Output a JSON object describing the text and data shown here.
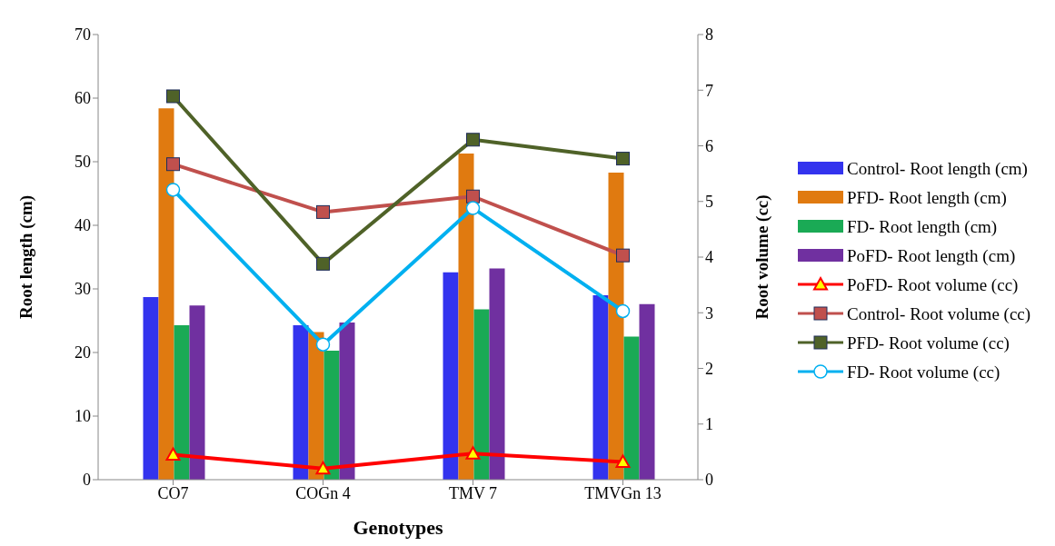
{
  "chart_data": {
    "type": "bar",
    "xlabel": "Genotypes",
    "ylabel": "Root length (cm)",
    "y2label": "Root volume (cc)",
    "categories": [
      "CO7",
      "COGn 4",
      "TMV 7",
      "TMVGn 13"
    ],
    "series": [
      {
        "name": "Control- Root length (cm)",
        "color": "#3333ee",
        "values": [
          28.7,
          24.3,
          32.6,
          29.0
        ]
      },
      {
        "name": "PFD- Root length (cm)",
        "color": "#e07a10",
        "values": [
          58.4,
          23.2,
          51.3,
          48.3
        ]
      },
      {
        "name": "FD- Root length (cm)",
        "color": "#1aaa55",
        "values": [
          24.3,
          20.3,
          26.8,
          22.5
        ]
      },
      {
        "name": "PoFD- Root length (cm)",
        "color": "#7030a0",
        "values": [
          27.4,
          24.7,
          33.2,
          27.6
        ]
      },
      {
        "name": "PoFD- Root volume (cc)",
        "type": "line",
        "axis": "y2",
        "marker": "triangle",
        "color": "#ff0000",
        "values": [
          0.45,
          0.2,
          0.47,
          0.32
        ]
      },
      {
        "name": "Control- Root volume (cc)",
        "type": "line",
        "axis": "y2",
        "marker": "square",
        "color": "#c0504d",
        "values": [
          5.67,
          4.81,
          5.09,
          4.03
        ]
      },
      {
        "name": "PFD- Root volume (cc)",
        "type": "line",
        "axis": "y2",
        "marker": "square",
        "color": "#4f6228",
        "values": [
          6.89,
          3.88,
          6.11,
          5.77
        ]
      },
      {
        "name": "FD- Root volume (cc)",
        "type": "line",
        "axis": "y2",
        "marker": "circle",
        "color": "#00b0f0",
        "values": [
          5.21,
          2.43,
          4.88,
          3.03
        ]
      }
    ],
    "ylim": [
      0,
      70
    ],
    "yticks": [
      0,
      10,
      20,
      30,
      40,
      50,
      60,
      70
    ],
    "y2lim": [
      0,
      8
    ],
    "y2ticks": [
      0,
      1,
      2,
      3,
      4,
      5,
      6,
      7,
      8
    ],
    "grid": false,
    "legend": "right"
  }
}
